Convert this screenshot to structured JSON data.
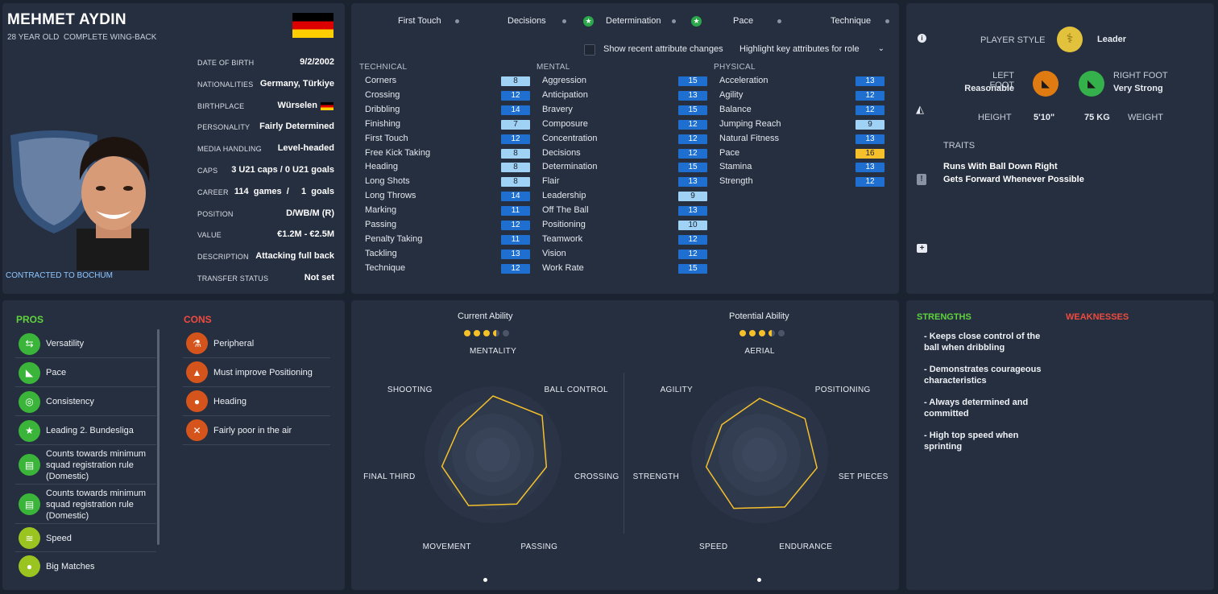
{
  "player": {
    "name": "MEHMET AYDIN",
    "subtitle": "28 YEAR OLD  COMPLETE WING-BACK",
    "contract": "CONTRACTED TO BOCHUM",
    "details": [
      {
        "label": "DATE OF BIRTH",
        "value": "9/2/2002"
      },
      {
        "label": "NATIONALITIES",
        "value": "Germany, Türkiye"
      },
      {
        "label": "BIRTHPLACE",
        "value": "Würselen"
      },
      {
        "label": "PERSONALITY",
        "value": "Fairly Determined"
      },
      {
        "label": "MEDIA HANDLING",
        "value": "Level-headed"
      },
      {
        "label": "CAPS",
        "value": "3 U21 caps / 0 U21 goals"
      },
      {
        "label": "CAREER",
        "value": "114  games  /     1  goals"
      },
      {
        "label": "POSITION",
        "value": "D/WB/M (R)"
      },
      {
        "label": "VALUE",
        "value": "€1.2M - €2.5M"
      },
      {
        "label": "DESCRIPTION",
        "value": "Attacking full back"
      },
      {
        "label": "TRANSFER STATUS",
        "value": "Not set"
      }
    ]
  },
  "key_attrs": [
    "First Touch",
    "Decisions",
    "Determination",
    "Pace",
    "Technique"
  ],
  "toggle": {
    "show_changes": "Show recent attribute changes",
    "highlight": "Highlight key attributes for role"
  },
  "technical": {
    "title": "TECHNICAL",
    "items": [
      {
        "name": "Corners",
        "value": "8",
        "style": "light"
      },
      {
        "name": "Crossing",
        "value": "12",
        "style": "dark"
      },
      {
        "name": "Dribbling",
        "value": "14",
        "style": "dark"
      },
      {
        "name": "Finishing",
        "value": "7",
        "style": "light"
      },
      {
        "name": "First Touch",
        "value": "12",
        "style": "dark"
      },
      {
        "name": "Free Kick Taking",
        "value": "8",
        "style": "light"
      },
      {
        "name": "Heading",
        "value": "8",
        "style": "light"
      },
      {
        "name": "Long Shots",
        "value": "8",
        "style": "light"
      },
      {
        "name": "Long Throws",
        "value": "14",
        "style": "dark"
      },
      {
        "name": "Marking",
        "value": "11",
        "style": "dark"
      },
      {
        "name": "Passing",
        "value": "12",
        "style": "dark"
      },
      {
        "name": "Penalty Taking",
        "value": "11",
        "style": "dark"
      },
      {
        "name": "Tackling",
        "value": "13",
        "style": "dark"
      },
      {
        "name": "Technique",
        "value": "12",
        "style": "dark"
      }
    ]
  },
  "mental": {
    "title": "MENTAL",
    "items": [
      {
        "name": "Aggression",
        "value": "15",
        "style": "dark"
      },
      {
        "name": "Anticipation",
        "value": "13",
        "style": "dark"
      },
      {
        "name": "Bravery",
        "value": "15",
        "style": "dark"
      },
      {
        "name": "Composure",
        "value": "12",
        "style": "dark"
      },
      {
        "name": "Concentration",
        "value": "12",
        "style": "dark"
      },
      {
        "name": "Decisions",
        "value": "12",
        "style": "dark"
      },
      {
        "name": "Determination",
        "value": "15",
        "style": "dark"
      },
      {
        "name": "Flair",
        "value": "13",
        "style": "dark"
      },
      {
        "name": "Leadership",
        "value": "9",
        "style": "light"
      },
      {
        "name": "Off The Ball",
        "value": "13",
        "style": "dark"
      },
      {
        "name": "Positioning",
        "value": "10",
        "style": "light"
      },
      {
        "name": "Teamwork",
        "value": "12",
        "style": "dark"
      },
      {
        "name": "Vision",
        "value": "12",
        "style": "dark"
      },
      {
        "name": "Work Rate",
        "value": "15",
        "style": "dark"
      }
    ]
  },
  "physical": {
    "title": "PHYSICAL",
    "items": [
      {
        "name": "Acceleration",
        "value": "13",
        "style": "dark"
      },
      {
        "name": "Agility",
        "value": "12",
        "style": "dark"
      },
      {
        "name": "Balance",
        "value": "12",
        "style": "dark"
      },
      {
        "name": "Jumping Reach",
        "value": "9",
        "style": "light"
      },
      {
        "name": "Natural Fitness",
        "value": "13",
        "style": "dark"
      },
      {
        "name": "Pace",
        "value": "16",
        "style": "gold"
      },
      {
        "name": "Stamina",
        "value": "13",
        "style": "dark"
      },
      {
        "name": "Strength",
        "value": "12",
        "style": "dark"
      }
    ]
  },
  "style": {
    "player_style_label": "PLAYER STYLE",
    "player_style": "Leader",
    "left_foot_label": "LEFT FOOT",
    "left_foot": "Reasonable",
    "right_foot_label": "RIGHT FOOT",
    "right_foot": "Very Strong",
    "height_label": "HEIGHT",
    "height": "5'10\"",
    "weight": "75 KG",
    "weight_label": "WEIGHT",
    "traits_label": "TRAITS",
    "traits": [
      "Runs With Ball Down Right",
      "Gets Forward Whenever Possible"
    ]
  },
  "pros": {
    "title": "PROS",
    "items": [
      {
        "text": "Versatility",
        "icon": "versatility-icon"
      },
      {
        "text": "Pace",
        "icon": "boot-icon"
      },
      {
        "text": "Consistency",
        "icon": "target-icon"
      },
      {
        "text": "Leading 2. Bundesliga",
        "icon": "star-icon"
      },
      {
        "text": "Counts towards minimum squad registration rule (Domestic)",
        "icon": "document-icon"
      },
      {
        "text": "Counts towards minimum squad registration rule (Domestic)",
        "icon": "document-icon"
      },
      {
        "text": "Speed",
        "icon": "speed-icon"
      },
      {
        "text": "Big Matches",
        "icon": "ball-icon"
      }
    ]
  },
  "cons": {
    "title": "CONS",
    "items": [
      {
        "text": "Peripheral",
        "icon": "flask-icon"
      },
      {
        "text": "Must improve Positioning",
        "icon": "cone-icon"
      },
      {
        "text": "Heading",
        "icon": "heading-icon"
      },
      {
        "text": "Fairly poor in the air",
        "icon": "aerial-icon"
      }
    ]
  },
  "ability": {
    "current_label": "Current Ability",
    "potential_label": "Potential Ability",
    "current_stars": 3.5,
    "potential_stars": 3.5
  },
  "chart_data": [
    {
      "type": "radar",
      "axes": [
        "MENTALITY",
        "BALL CONTROL",
        "CROSSING",
        "PASSING",
        "MOVEMENT",
        "FINAL THIRD",
        "SHOOTING"
      ],
      "values": [
        0.73,
        0.78,
        0.68,
        0.68,
        0.7,
        0.65,
        0.54
      ]
    },
    {
      "type": "radar",
      "axes": [
        "AERIAL",
        "POSITIONING",
        "SET PIECES",
        "ENDURANCE",
        "SPEED",
        "STRENGTH",
        "AGILITY"
      ],
      "values": [
        0.7,
        0.72,
        0.73,
        0.72,
        0.74,
        0.68,
        0.6
      ]
    }
  ],
  "strengths": {
    "title": "STRENGTHS",
    "items": [
      "- Keeps close control of the ball when dribbling",
      "- Demonstrates courageous characteristics",
      "- Always determined and committed",
      "- High top speed when sprinting"
    ]
  },
  "weaknesses": {
    "title": "WEAKNESSES"
  },
  "colors": {
    "accent_gold": "#f5c02a",
    "pros": "#5fd33d",
    "cons": "#ef4b3e",
    "badge_dark": "#1f6fd1",
    "badge_light": "#9fd2f5"
  }
}
